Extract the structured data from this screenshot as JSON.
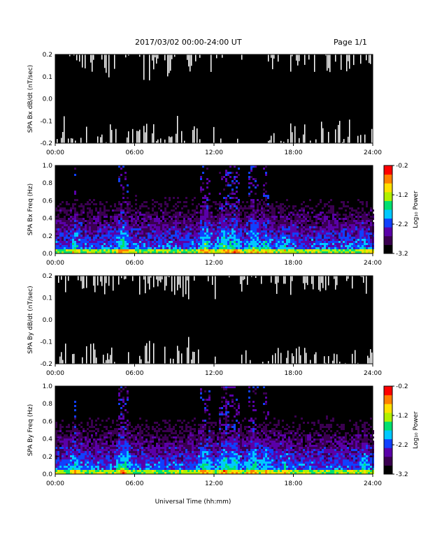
{
  "header": {
    "title": "2017/03/02  00:00-24:00 UT",
    "page": "Page 1/1"
  },
  "footer": {
    "xlabel": "Universal Time (hh:mm)"
  },
  "colors": {
    "background": "#ffffff",
    "plot_fill": "#000000",
    "trace_gap": "#ffffff",
    "colormap": [
      "#000000",
      "#3a0050",
      "#5a00a8",
      "#1040ff",
      "#00c8ff",
      "#00e070",
      "#b0f000",
      "#ffe000",
      "#ff8000",
      "#ff0000"
    ]
  },
  "chart_data": [
    {
      "type": "line",
      "ylabel": "SPA Bx dB/dt (nT/sec)",
      "xlim": [
        "00:00",
        "24:00"
      ],
      "x_ticks": [
        "00:00",
        "06:00",
        "12:00",
        "18:00",
        "24:00"
      ],
      "ylim": [
        -0.2,
        0.2
      ],
      "y_ticks": [
        "-0.2",
        "-0.1",
        "0.0",
        "0.1",
        "0.2"
      ]
    },
    {
      "type": "heatmap",
      "ylabel": "SPA Bx Freq (Hz)",
      "xlim": [
        "00:00",
        "24:00"
      ],
      "x_ticks": [
        "00:00",
        "06:00",
        "12:00",
        "18:00",
        "24:00"
      ],
      "ylim": [
        0.0,
        1.0
      ],
      "y_ticks": [
        "0.0",
        "0.2",
        "0.4",
        "0.6",
        "0.8",
        "1.0"
      ],
      "colorbar": {
        "label": "Log₁₀ Power",
        "range": [
          -3.2,
          -0.2
        ],
        "ticks": [
          "-0.2",
          "-1.2",
          "-2.2",
          "-3.2"
        ]
      }
    },
    {
      "type": "line",
      "ylabel": "SPA By dB/dt (nT/sec)",
      "xlim": [
        "00:00",
        "24:00"
      ],
      "x_ticks": [
        "00:00",
        "06:00",
        "12:00",
        "18:00",
        "24:00"
      ],
      "ylim": [
        -0.2,
        0.2
      ],
      "y_ticks": [
        "-0.2",
        "-0.1",
        "0.0",
        "0.1",
        "0.2"
      ]
    },
    {
      "type": "heatmap",
      "ylabel": "SPA By Freq (Hz)",
      "xlim": [
        "00:00",
        "24:00"
      ],
      "x_ticks": [
        "00:00",
        "06:00",
        "12:00",
        "18:00",
        "24:00"
      ],
      "ylim": [
        0.0,
        1.0
      ],
      "y_ticks": [
        "0.0",
        "0.2",
        "0.4",
        "0.6",
        "0.8",
        "1.0"
      ],
      "colorbar": {
        "label": "Log₁₀ Power",
        "range": [
          -3.2,
          -0.2
        ],
        "ticks": [
          "-0.2",
          "-1.2",
          "-2.2",
          "-3.2"
        ]
      }
    }
  ]
}
